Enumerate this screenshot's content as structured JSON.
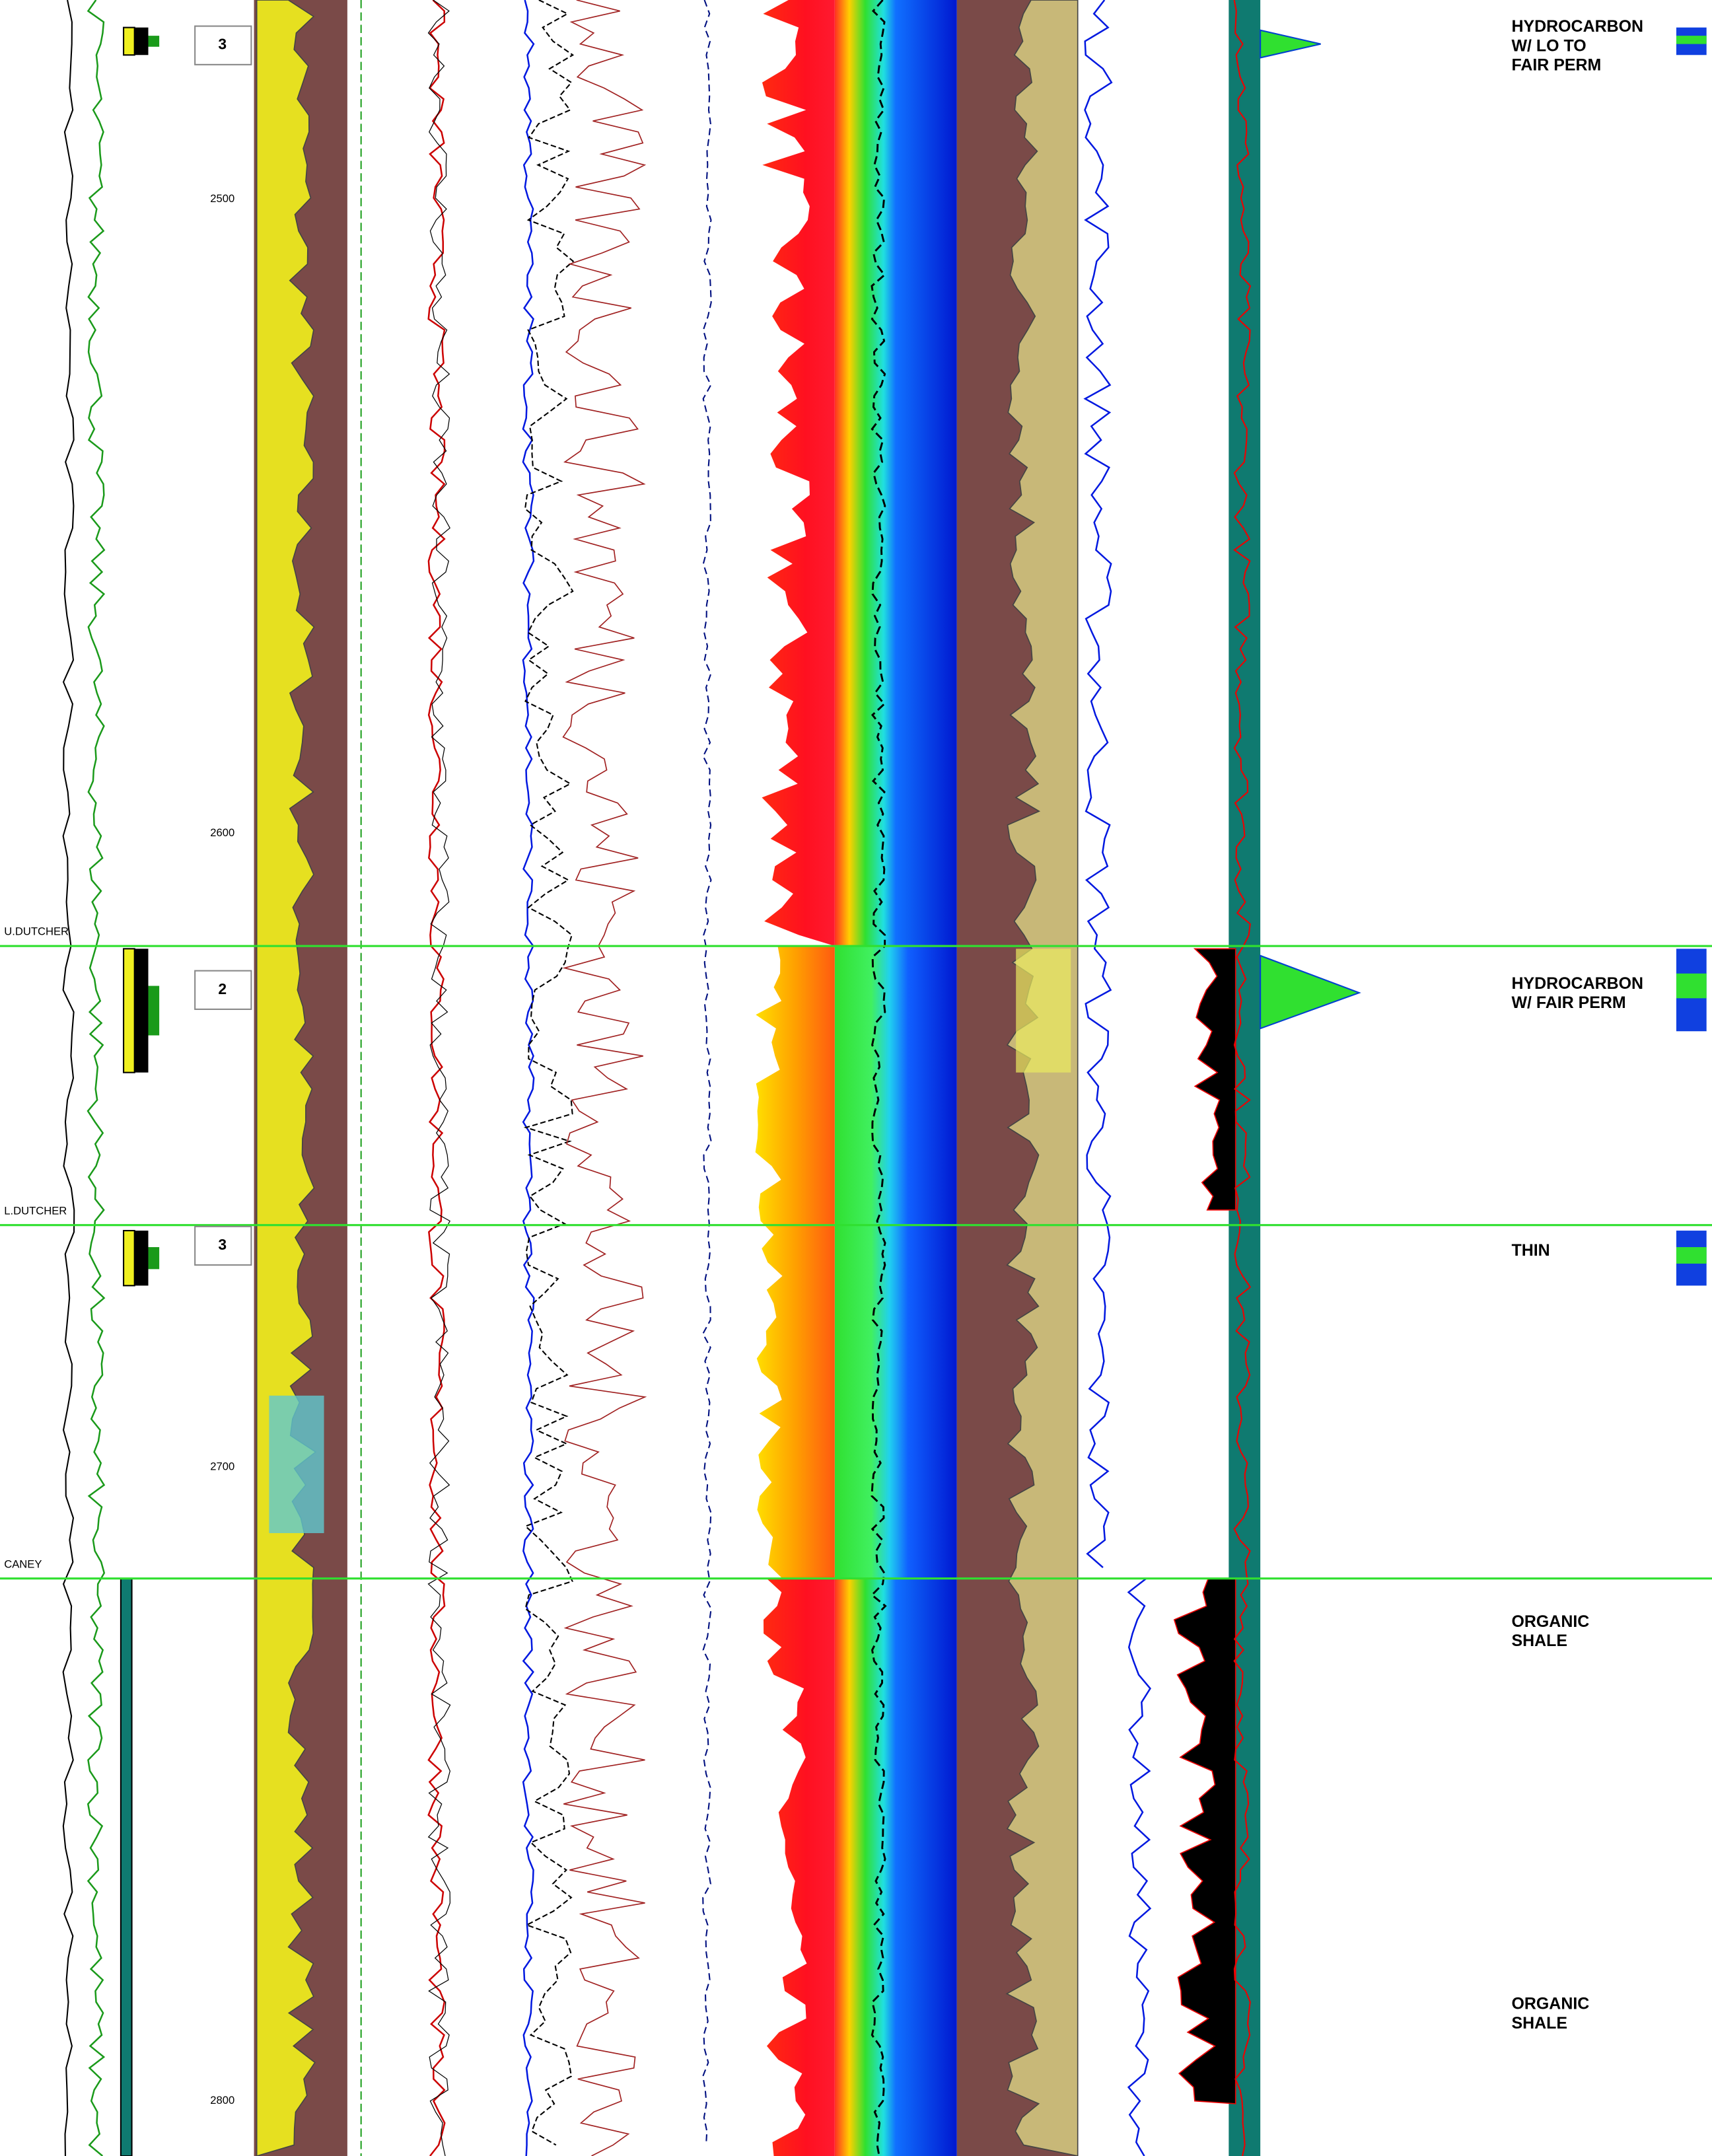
{
  "depth_track": {
    "labels": [
      2500,
      2600,
      2700,
      2800
    ]
  },
  "zones": [
    "3",
    "2",
    "3"
  ],
  "formation_tops": [
    "U.DUTCHER",
    "L.DUTCHER",
    "CANEY"
  ],
  "interpretations": [
    [
      "HYDROCARBON",
      "W/ LO TO",
      "FAIR PERM"
    ],
    [
      "HYDROCARBON",
      "W/ FAIR PERM"
    ],
    [
      "THIN"
    ],
    [
      "ORGANIC",
      "SHALE"
    ],
    [
      "ORGANIC",
      "SHALE"
    ]
  ]
}
